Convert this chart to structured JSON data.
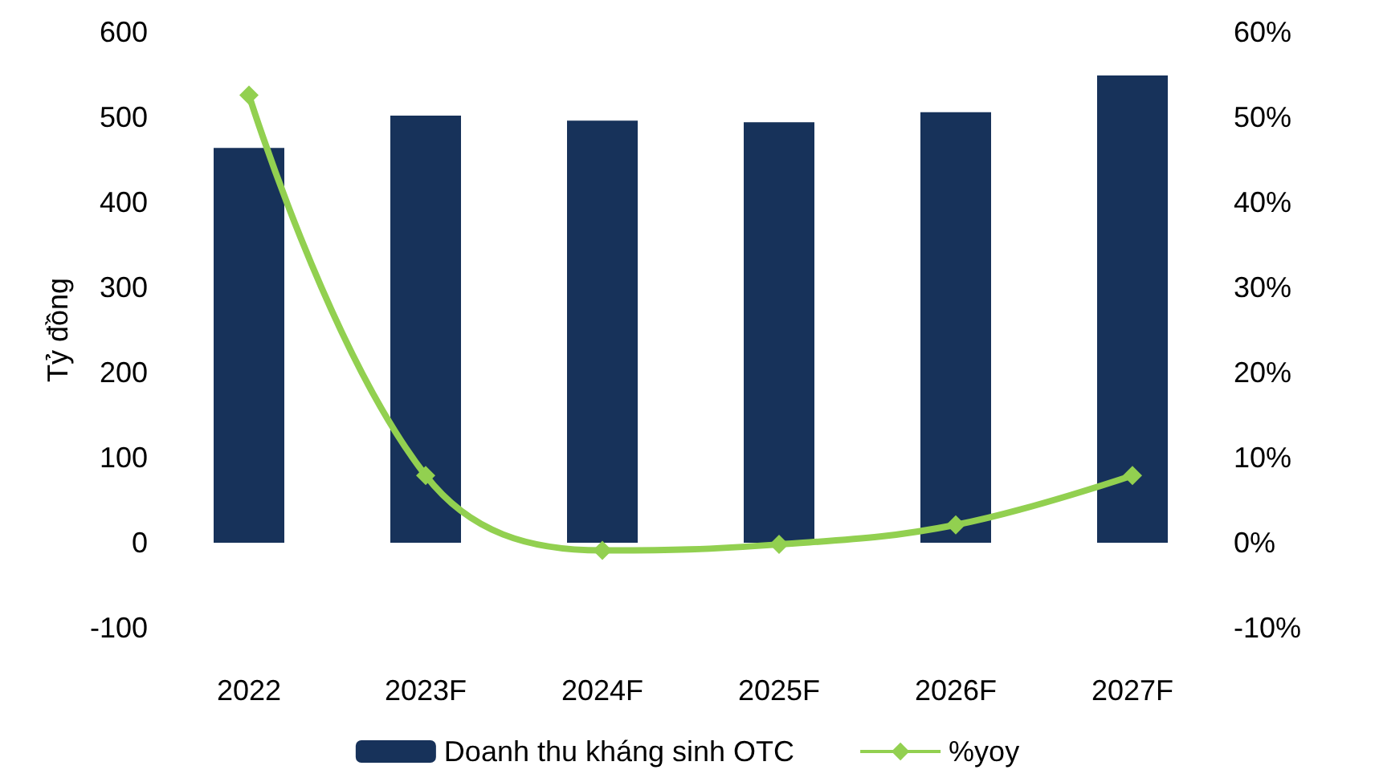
{
  "chart_data": {
    "type": "bar",
    "ylabel": "Tỷ đồng",
    "categories": [
      "2022",
      "2023F",
      "2024F",
      "2025F",
      "2026F",
      "2027F"
    ],
    "series": [
      {
        "name": "Doanh thu kháng sinh OTC",
        "color": "#17325a",
        "values": [
          464,
          502,
          496,
          494,
          506,
          549
        ]
      },
      {
        "name": "%yoy",
        "type": "line",
        "axis": "y2",
        "color": "#92d050",
        "marker": "diamond",
        "values": [
          52.6,
          7.9,
          -0.9,
          -0.2,
          2.1,
          7.9
        ]
      }
    ],
    "ylim": [
      -100,
      600
    ],
    "yticks": [
      -100,
      0,
      100,
      200,
      300,
      400,
      500,
      600
    ],
    "y2lim": [
      -10,
      60
    ],
    "y2ticks": [
      {
        "value": -10,
        "label": "-10%"
      },
      {
        "value": 0,
        "label": "0%"
      },
      {
        "value": 10,
        "label": "10%"
      },
      {
        "value": 20,
        "label": "20%"
      },
      {
        "value": 30,
        "label": "30%"
      },
      {
        "value": 40,
        "label": "40%"
      },
      {
        "value": 50,
        "label": "50%"
      },
      {
        "value": 60,
        "label": "60%"
      }
    ],
    "grid": false,
    "legend": "bottom"
  }
}
